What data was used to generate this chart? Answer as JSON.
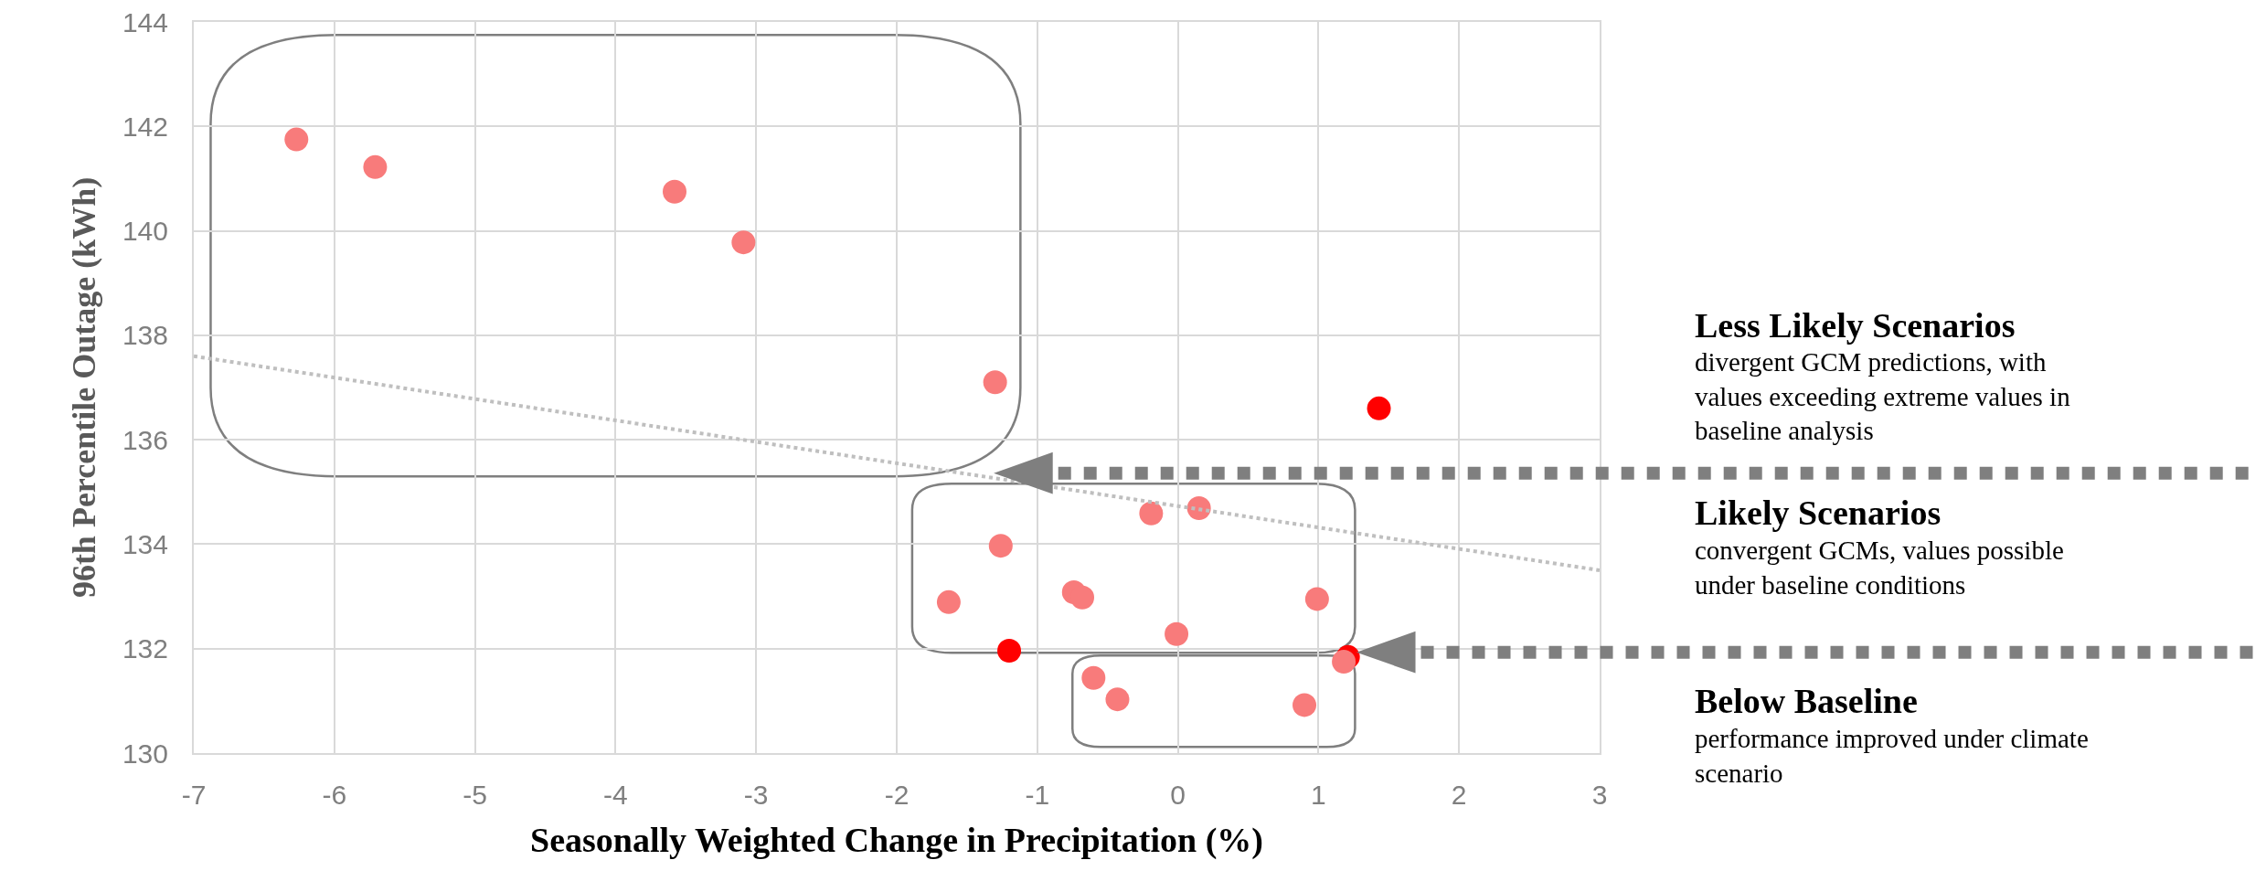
{
  "chart_data": {
    "type": "scatter",
    "xlabel": "Seasonally Weighted Change in Precipitation (%)",
    "ylabel": "96th Percentile Outage (kWh)",
    "series": [
      {
        "color": "#ff0000",
        "x": [
          -1.2,
          1.43,
          1.21
        ],
        "values": [
          131.96,
          136.6,
          131.84
        ]
      },
      {
        "color": "#f87b7b",
        "x": [
          -6.27,
          -5.71,
          -3.58,
          -3.09,
          -1.3,
          -0.19,
          0.15,
          -1.26,
          -1.63,
          -0.74,
          -0.68,
          0.99,
          -0.01,
          1.18,
          -0.6,
          -0.43,
          0.9
        ],
        "values": [
          141.75,
          141.22,
          140.75,
          139.78,
          137.1,
          134.59,
          134.69,
          133.97,
          132.89,
          133.08,
          132.98,
          132.95,
          132.28,
          131.75,
          131.44,
          131.03,
          130.92
        ]
      },
      {
        "type": "line",
        "color": "#bfbfbf",
        "line_style": "dotted",
        "marker": "none",
        "x": [
          -7,
          3
        ],
        "values": [
          137.6,
          133.5
        ]
      }
    ],
    "marker": "circle",
    "xlim": [
      -7,
      3
    ],
    "xticks": [
      -7,
      -6,
      -5,
      -4,
      -3,
      -2,
      -1,
      0,
      1,
      2,
      3
    ],
    "ylim": [
      130,
      144
    ],
    "yticks": [
      130,
      132,
      134,
      136,
      138,
      140,
      142,
      144
    ],
    "grid": true,
    "annotations": [
      "Less Likely Scenarios",
      "divergent GCM predictions, with values exceeding extreme values in baseline analysis",
      "Likely Scenarios",
      "convergent GCMs, values possible under baseline conditions",
      "Below Baseline",
      "performance improved under climate scenario"
    ]
  }
}
